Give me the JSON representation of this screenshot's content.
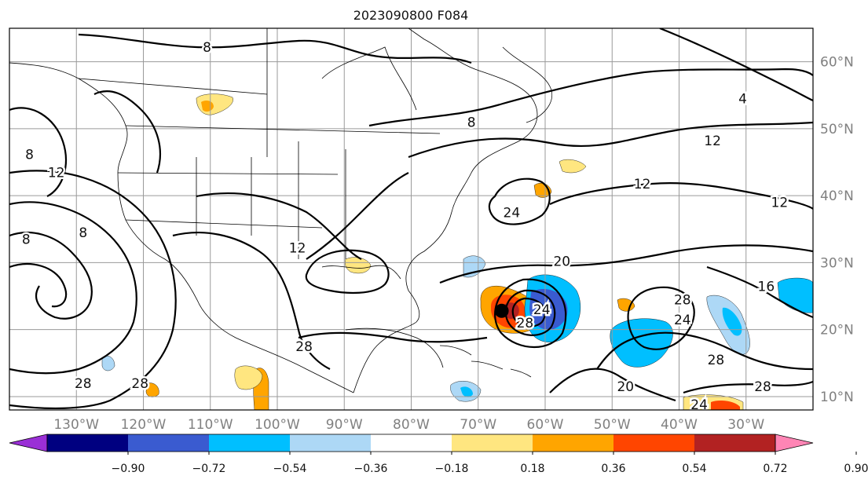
{
  "map": {
    "title": "2023090800 F084",
    "lon_ticks": [
      "130°W",
      "120°W",
      "110°W",
      "100°W",
      "90°W",
      "80°W",
      "70°W",
      "60°W",
      "50°W",
      "40°W",
      "30°W"
    ],
    "lat_ticks": [
      "10°N",
      "20°N",
      "30°N",
      "40°N",
      "50°N",
      "60°N"
    ],
    "extent": {
      "lon_min": -140,
      "lon_max": -20,
      "lat_min": 8,
      "lat_max": 65
    },
    "contour_labels": [
      {
        "text": "8",
        "lon": -110.5,
        "lat": 62.2
      },
      {
        "text": "8",
        "lon": -71.0,
        "lat": 51.0
      },
      {
        "text": "4",
        "lon": -30.5,
        "lat": 54.5
      },
      {
        "text": "12",
        "lon": -35.0,
        "lat": 48.2
      },
      {
        "text": "12",
        "lon": -45.5,
        "lat": 41.8
      },
      {
        "text": "12",
        "lon": -25.0,
        "lat": 39.0
      },
      {
        "text": "24",
        "lon": -65.0,
        "lat": 37.5
      },
      {
        "text": "20",
        "lon": -57.5,
        "lat": 30.2
      },
      {
        "text": "16",
        "lon": -27.0,
        "lat": 26.5
      },
      {
        "text": "28",
        "lon": -39.5,
        "lat": 24.5
      },
      {
        "text": "24",
        "lon": -39.5,
        "lat": 21.5
      },
      {
        "text": "24",
        "lon": -60.5,
        "lat": 23.0
      },
      {
        "text": "28",
        "lon": -63.0,
        "lat": 21.0
      },
      {
        "text": "28",
        "lon": -34.5,
        "lat": 15.5
      },
      {
        "text": "28",
        "lon": -27.5,
        "lat": 11.5
      },
      {
        "text": "20",
        "lon": -48.0,
        "lat": 11.5
      },
      {
        "text": "24",
        "lon": -37.0,
        "lat": 8.8
      },
      {
        "text": "28",
        "lon": -129.0,
        "lat": 12.0
      },
      {
        "text": "28",
        "lon": -120.5,
        "lat": 12.0
      },
      {
        "text": "28",
        "lon": -96.0,
        "lat": 17.5
      },
      {
        "text": "8",
        "lon": -137.0,
        "lat": 46.2
      },
      {
        "text": "12",
        "lon": -133.0,
        "lat": 43.5
      },
      {
        "text": "8",
        "lon": -129.0,
        "lat": 34.5
      },
      {
        "text": "8",
        "lon": -137.5,
        "lat": 33.5
      },
      {
        "text": "12",
        "lon": -97.0,
        "lat": 32.2
      }
    ],
    "storm_center": {
      "lon": -66.5,
      "lat": 22.8
    }
  },
  "colorbar": {
    "labels": [
      "−0.90",
      "−0.72",
      "−0.54",
      "−0.36",
      "−0.18",
      "0.18",
      "0.36",
      "0.54",
      "0.72",
      "0.90"
    ],
    "colors": [
      "#9a2fd6",
      "#000080",
      "#3a5bd0",
      "#00bfff",
      "#add8f6",
      "#ffffff",
      "#ffe680",
      "#ffa500",
      "#ff4500",
      "#b22222",
      "#ff85b5"
    ]
  }
}
